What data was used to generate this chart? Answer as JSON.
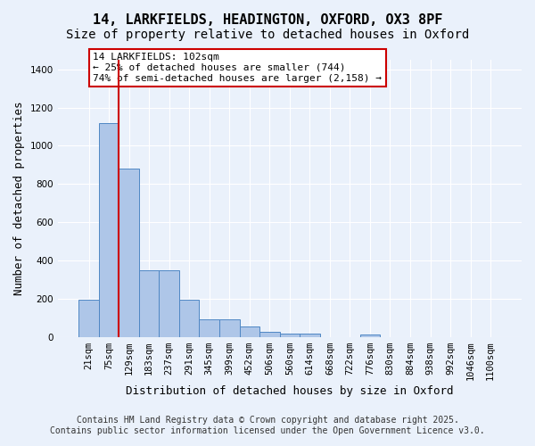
{
  "title_line1": "14, LARKFIELDS, HEADINGTON, OXFORD, OX3 8PF",
  "title_line2": "Size of property relative to detached houses in Oxford",
  "xlabel": "Distribution of detached houses by size in Oxford",
  "ylabel": "Number of detached properties",
  "categories": [
    "21sqm",
    "75sqm",
    "129sqm",
    "183sqm",
    "237sqm",
    "291sqm",
    "345sqm",
    "399sqm",
    "452sqm",
    "506sqm",
    "560sqm",
    "614sqm",
    "668sqm",
    "722sqm",
    "776sqm",
    "830sqm",
    "884sqm",
    "938sqm",
    "992sqm",
    "1046sqm",
    "1100sqm"
  ],
  "values": [
    195,
    1120,
    880,
    350,
    350,
    195,
    93,
    93,
    55,
    25,
    20,
    20,
    0,
    0,
    15,
    0,
    0,
    0,
    0,
    0,
    0
  ],
  "bar_color": "#aec6e8",
  "bar_edge_color": "#4f87c4",
  "vline_x": 1,
  "vline_color": "#cc0000",
  "annotation_text": "14 LARKFIELDS: 102sqm\n← 25% of detached houses are smaller (744)\n74% of semi-detached houses are larger (2,158) →",
  "annotation_box_color": "#ffffff",
  "annotation_box_edge": "#cc0000",
  "annotation_fontsize": 8,
  "ylim": [
    0,
    1450
  ],
  "yticks": [
    0,
    200,
    400,
    600,
    800,
    1000,
    1200,
    1400
  ],
  "background_color": "#eaf1fb",
  "grid_color": "#ffffff",
  "footer_line1": "Contains HM Land Registry data © Crown copyright and database right 2025.",
  "footer_line2": "Contains public sector information licensed under the Open Government Licence v3.0.",
  "title_fontsize": 11,
  "subtitle_fontsize": 10,
  "xlabel_fontsize": 9,
  "ylabel_fontsize": 9,
  "tick_fontsize": 7.5,
  "footer_fontsize": 7
}
